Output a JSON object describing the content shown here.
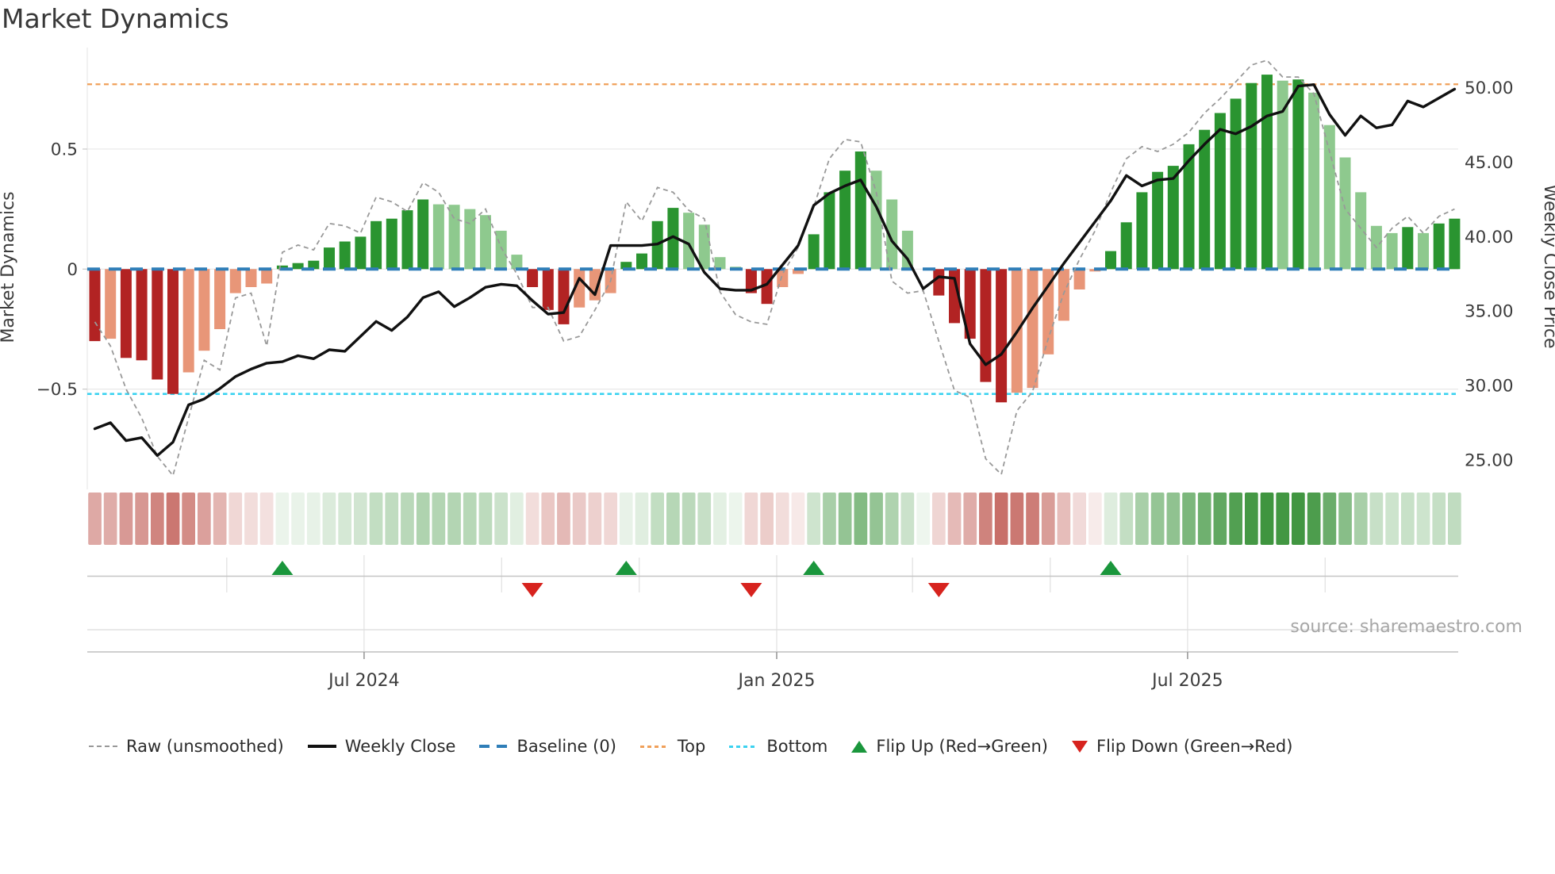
{
  "title": "Market Dynamics",
  "source_note": "source: sharemaestro.com",
  "axes": {
    "left": {
      "title": "Market Dynamics",
      "ticks": [
        {
          "label": "0.5",
          "value": 0.5
        },
        {
          "label": "0",
          "value": 0
        },
        {
          "label": "−0.5",
          "value": -0.5
        }
      ]
    },
    "right": {
      "title": "Weekly Close Price",
      "ticks": [
        {
          "label": "50.00",
          "value": 50
        },
        {
          "label": "45.00",
          "value": 45
        },
        {
          "label": "40.00",
          "value": 40
        },
        {
          "label": "35.00",
          "value": 35
        },
        {
          "label": "30.00",
          "value": 30
        },
        {
          "label": "25.00",
          "value": 25
        }
      ]
    },
    "x": {
      "major_ticks": [
        {
          "label": "Jul 2024",
          "index": 17.23
        },
        {
          "label": "Jan 2025",
          "index": 43.63
        },
        {
          "label": "Jul 2025",
          "index": 69.92
        }
      ],
      "minor_tick_indices": [
        8.44,
        26.03,
        34.83,
        52.32,
        61.13,
        78.72
      ]
    }
  },
  "legend": {
    "items": [
      {
        "label": "Raw (unsmoothed)",
        "glyph": "raw"
      },
      {
        "label": "Weekly Close",
        "glyph": "close"
      },
      {
        "label": "Baseline (0)",
        "glyph": "baseline"
      },
      {
        "label": "Top",
        "glyph": "top"
      },
      {
        "label": "Bottom",
        "glyph": "bottom"
      },
      {
        "label": "Flip Up (Red→Green)",
        "glyph": "flipup"
      },
      {
        "label": "Flip Down (Green→Red)",
        "glyph": "flipdown"
      }
    ]
  },
  "colors": {
    "bar_red_strong": "#b22323",
    "bar_red_soft": "#e89678",
    "bar_green_strong": "#2a9430",
    "bar_green_soft": "#8ec98e",
    "baseline": "#2f7eb8",
    "top_line": "#f0a05a",
    "bottom_line": "#3cd2f0",
    "raw_line": "#999999",
    "close_line": "#111111",
    "flip_up": "#1a963c",
    "flip_down": "#d7231e",
    "grid": "#e8e8e8",
    "axis_line": "#c8c8c8",
    "tick_text": "#3c3c3c",
    "source_text": "#a6a6a6",
    "heat_green_base": [
      46,
      140,
      46
    ],
    "heat_red_base": [
      172,
      38,
      28
    ]
  },
  "chart_data": {
    "type": "combo (bar oscillator + lines)",
    "x_unit": "week",
    "n_points": 88,
    "series": [
      {
        "name": "Dynamics bars",
        "type": "bar",
        "axis": "left",
        "values": [
          -0.3,
          -0.29,
          -0.37,
          -0.38,
          -0.46,
          -0.52,
          -0.43,
          -0.34,
          -0.25,
          -0.1,
          -0.075,
          -0.06,
          0.015,
          0.025,
          0.035,
          0.09,
          0.115,
          0.135,
          0.2,
          0.21,
          0.245,
          0.29,
          0.27,
          0.268,
          0.25,
          0.225,
          0.16,
          0.06,
          -0.075,
          -0.17,
          -0.23,
          -0.16,
          -0.13,
          -0.1,
          0.03,
          0.065,
          0.2,
          0.255,
          0.235,
          0.185,
          0.05,
          0.01,
          -0.1,
          -0.145,
          -0.075,
          -0.02,
          0.145,
          0.32,
          0.41,
          0.49,
          0.41,
          0.29,
          0.16,
          0.0,
          -0.11,
          -0.225,
          -0.29,
          -0.47,
          -0.555,
          -0.515,
          -0.495,
          -0.355,
          -0.215,
          -0.085,
          -0.01,
          0.075,
          0.195,
          0.32,
          0.405,
          0.43,
          0.52,
          0.58,
          0.65,
          0.71,
          0.775,
          0.81,
          0.785,
          0.79,
          0.735,
          0.6,
          0.465,
          0.32,
          0.18,
          0.15,
          0.175,
          0.15,
          0.19,
          0.21
        ]
      },
      {
        "name": "Raw (unsmoothed)",
        "type": "line",
        "axis": "left",
        "values": [
          -0.22,
          -0.32,
          -0.5,
          -0.62,
          -0.78,
          -0.86,
          -0.62,
          -0.38,
          -0.42,
          -0.12,
          -0.1,
          -0.32,
          0.07,
          0.1,
          0.08,
          0.19,
          0.18,
          0.15,
          0.3,
          0.28,
          0.24,
          0.36,
          0.32,
          0.21,
          0.19,
          0.25,
          0.09,
          -0.02,
          -0.16,
          -0.16,
          -0.3,
          -0.28,
          -0.17,
          -0.05,
          0.28,
          0.2,
          0.34,
          0.32,
          0.245,
          0.21,
          -0.095,
          -0.19,
          -0.22,
          -0.23,
          -0.02,
          0.09,
          0.26,
          0.46,
          0.54,
          0.53,
          0.32,
          -0.05,
          -0.1,
          -0.09,
          -0.3,
          -0.505,
          -0.535,
          -0.79,
          -0.855,
          -0.59,
          -0.51,
          -0.29,
          -0.1,
          0.04,
          0.16,
          0.32,
          0.46,
          0.51,
          0.49,
          0.52,
          0.57,
          0.65,
          0.71,
          0.78,
          0.85,
          0.87,
          0.8,
          0.8,
          0.73,
          0.49,
          0.25,
          0.17,
          0.09,
          0.17,
          0.22,
          0.15,
          0.22,
          0.25
        ]
      },
      {
        "name": "Weekly Close",
        "type": "line",
        "axis": "right",
        "values": [
          27.1,
          27.5,
          26.3,
          26.5,
          25.3,
          26.2,
          28.7,
          29.1,
          29.8,
          30.6,
          31.1,
          31.5,
          31.6,
          32.0,
          31.8,
          32.4,
          32.3,
          33.3,
          34.3,
          33.7,
          34.6,
          35.9,
          36.3,
          35.3,
          35.9,
          36.6,
          36.8,
          36.7,
          35.7,
          34.8,
          34.9,
          37.2,
          36.1,
          39.4,
          39.4,
          39.4,
          39.5,
          40.0,
          39.5,
          37.6,
          36.5,
          36.4,
          36.4,
          36.8,
          38.1,
          39.4,
          42.1,
          42.9,
          43.4,
          43.8,
          42.0,
          39.7,
          38.5,
          36.5,
          37.3,
          37.2,
          32.8,
          31.4,
          32.1,
          33.6,
          35.2,
          36.7,
          38.2,
          39.6,
          41.0,
          42.4,
          44.1,
          43.4,
          43.8,
          43.9,
          45.1,
          46.2,
          47.2,
          46.9,
          47.4,
          48.1,
          48.4,
          50.1,
          50.2,
          48.2,
          46.8,
          48.1,
          47.3,
          47.5,
          49.1,
          48.7,
          49.3,
          49.9
        ]
      }
    ],
    "heat_strip": "one cell per week, color-mapped from Dynamics bar values",
    "reference_lines": {
      "baseline": 0,
      "top": 0.77,
      "bottom": -0.52
    },
    "flip_up_indices": [
      12,
      34,
      46,
      65
    ],
    "flip_down_indices": [
      28,
      42,
      54
    ],
    "ylim_left": [
      -0.92,
      0.92
    ],
    "ylim_right": [
      23.0,
      52.7
    ],
    "grid": "horizontal only",
    "legend_position": "bottom"
  }
}
